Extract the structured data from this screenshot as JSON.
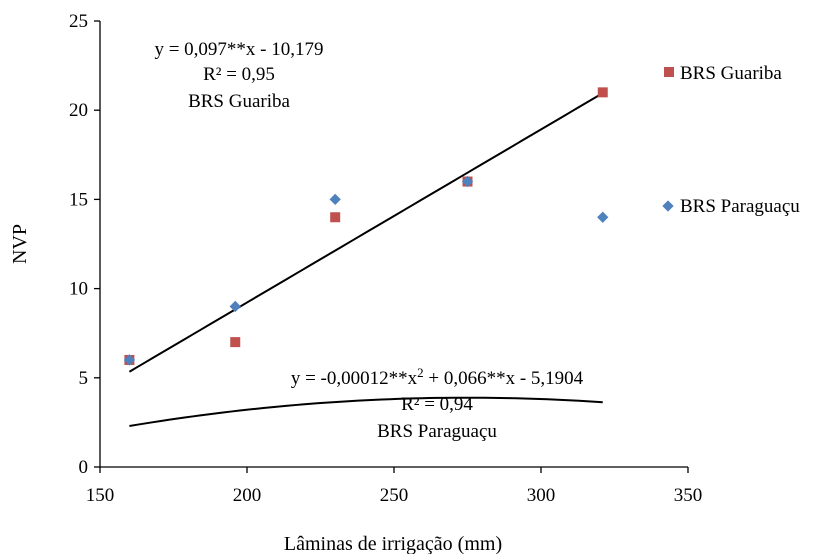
{
  "chart_data": {
    "type": "scatter",
    "xlabel": "Lâminas de irrigação  (mm)",
    "ylabel": "NVP",
    "xlim": [
      150,
      350
    ],
    "ylim": [
      0,
      25
    ],
    "xticks": [
      150,
      200,
      250,
      300,
      350
    ],
    "yticks": [
      0,
      5,
      10,
      15,
      20,
      25
    ],
    "x_tick_labels": [
      "150",
      "200",
      "250",
      "300",
      "350"
    ],
    "y_tick_labels": [
      "0",
      "5",
      "10",
      "15",
      "20",
      "25"
    ],
    "grid": false,
    "legend_position": "right",
    "series": [
      {
        "name": "BRS Guariba",
        "marker": "square",
        "color": "#c0504d",
        "x": [
          160,
          196,
          230,
          275,
          321
        ],
        "y": [
          6,
          7,
          14,
          16,
          21
        ],
        "trendline": {
          "type": "linear",
          "coef": [
            0.097,
            -10.179
          ]
        }
      },
      {
        "name": "BRS Paraguaçu",
        "marker": "diamond",
        "color": "#4f81bd",
        "x": [
          160,
          196,
          230,
          275,
          321
        ],
        "y": [
          6,
          9,
          15,
          16,
          14
        ],
        "trendline": {
          "type": "quadratic",
          "coef": [
            -0.00012,
            0.066,
            -5.1904
          ]
        }
      }
    ],
    "annotations": {
      "guariba_eq": "y = 0,097**x - 10,179",
      "guariba_r2": "R² = 0,95",
      "guariba_name": "BRS Guariba",
      "paraguacu_eq_a": "y = -0,00012**x",
      "paraguacu_eq_sup": "2",
      "paraguacu_eq_b": " + 0,066**x - 5,1904",
      "paraguacu_r2": "R² = 0,94",
      "paraguacu_name": "BRS Paraguaçu"
    }
  }
}
